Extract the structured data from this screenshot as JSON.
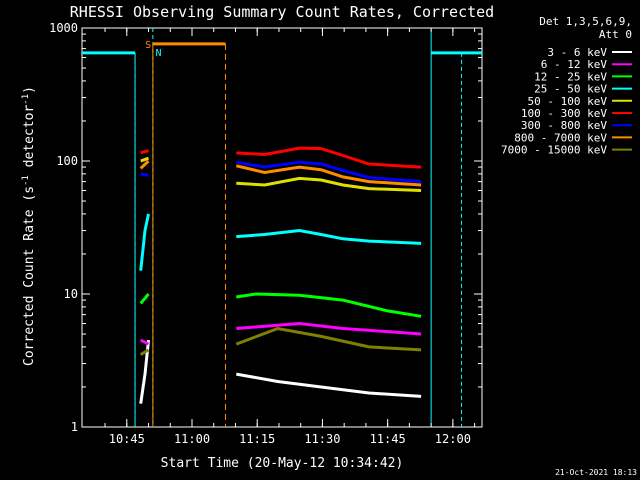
{
  "chart_data": {
    "type": "line",
    "title": "RHESSI Observing Summary Count Rates, Corrected",
    "xlabel": "Start Time (20-May-12 10:34:42)",
    "ylabel_main": "Corrected Count Rate (s",
    "ylabel_sup1": "-1",
    "ylabel_mid": " detector",
    "ylabel_sup2": "-1",
    "ylabel_end": ")",
    "yscale": "log",
    "ylim": [
      1,
      1000
    ],
    "xlim_minutes": [
      0,
      92
    ],
    "x_ticks": [
      "10:45",
      "11:00",
      "11:15",
      "11:30",
      "11:45",
      "12:00"
    ],
    "y_ticks": [
      "1",
      "10",
      "100",
      "1000"
    ],
    "legend_header": [
      "Det 1,3,5,6,9,",
      "Att 0"
    ],
    "legend": [
      {
        "label": "3 - 6 keV",
        "color": "#ffffff"
      },
      {
        "label": "6 - 12 keV",
        "color": "#ff00ff"
      },
      {
        "label": "12 - 25 keV",
        "color": "#00ff00"
      },
      {
        "label": "25 - 50 keV",
        "color": "#00ffff"
      },
      {
        "label": "50 - 100 keV",
        "color": "#e0e000"
      },
      {
        "label": "100 - 300 keV",
        "color": "#ff0000"
      },
      {
        "label": "300 - 800 keV",
        "color": "#0000ff"
      },
      {
        "label": "800 - 7000 keV",
        "color": "#ff8c00"
      },
      {
        "label": "7000 - 15000 keV",
        "color": "#808000"
      }
    ],
    "flags": {
      "saa_label": "S",
      "night_label": "N",
      "night_level": 650,
      "saa_level": 760
    },
    "series": [
      {
        "name": "3 - 6 keV",
        "color": "#ffffff",
        "segments": [
          [
            [
              13.5,
              1.5
            ],
            [
              14.5,
              2.5
            ],
            [
              15.3,
              4.5
            ]
          ],
          [
            [
              35.5,
              2.5
            ],
            [
              45,
              2.2
            ],
            [
              55,
              2.0
            ],
            [
              66,
              1.8
            ],
            [
              78,
              1.7
            ]
          ]
        ]
      },
      {
        "name": "6 - 12 keV",
        "color": "#ff00ff",
        "segments": [
          [
            [
              13.5,
              4.5
            ],
            [
              15.3,
              4.2
            ]
          ],
          [
            [
              35.5,
              5.5
            ],
            [
              50,
              6.0
            ],
            [
              60,
              5.5
            ],
            [
              78,
              5.0
            ]
          ]
        ]
      },
      {
        "name": "12 - 25 keV",
        "color": "#00ff00",
        "segments": [
          [
            [
              13.5,
              8.5
            ],
            [
              15.3,
              10.0
            ]
          ],
          [
            [
              35.5,
              9.5
            ],
            [
              40,
              10.0
            ],
            [
              50,
              9.8
            ],
            [
              60,
              9.0
            ],
            [
              70,
              7.5
            ],
            [
              78,
              6.8
            ]
          ]
        ]
      },
      {
        "name": "25 - 50 keV",
        "color": "#00ffff",
        "segments": [
          [
            [
              13.5,
              15
            ],
            [
              14.5,
              30
            ],
            [
              15.3,
              40
            ]
          ],
          [
            [
              35.5,
              27
            ],
            [
              42,
              28
            ],
            [
              50,
              30
            ],
            [
              55,
              28
            ],
            [
              60,
              26
            ],
            [
              66,
              25
            ],
            [
              78,
              24
            ]
          ]
        ]
      },
      {
        "name": "50 - 100 keV",
        "color": "#e0e000",
        "segments": [
          [
            [
              13.5,
              100
            ],
            [
              15.3,
              105
            ]
          ],
          [
            [
              35.5,
              68
            ],
            [
              42,
              66
            ],
            [
              50,
              74
            ],
            [
              55,
              72
            ],
            [
              60,
              66
            ],
            [
              66,
              62
            ],
            [
              78,
              60
            ]
          ]
        ]
      },
      {
        "name": "100 - 300 keV",
        "color": "#ff0000",
        "segments": [
          [
            [
              13.5,
              115
            ],
            [
              15.3,
              120
            ]
          ],
          [
            [
              35.5,
              115
            ],
            [
              42,
              112
            ],
            [
              50,
              125
            ],
            [
              55,
              124
            ],
            [
              60,
              110
            ],
            [
              66,
              95
            ],
            [
              78,
              90
            ]
          ]
        ]
      },
      {
        "name": "300 - 800 keV",
        "color": "#0000ff",
        "segments": [
          [
            [
              13.5,
              80
            ],
            [
              15.3,
              78
            ]
          ],
          [
            [
              35.5,
              98
            ],
            [
              42,
              90
            ],
            [
              50,
              98
            ],
            [
              55,
              95
            ],
            [
              60,
              85
            ],
            [
              66,
              75
            ],
            [
              78,
              70
            ]
          ]
        ]
      },
      {
        "name": "800 - 7000 keV",
        "color": "#ff8c00",
        "segments": [
          [
            [
              13.5,
              88
            ],
            [
              15.3,
              100
            ]
          ],
          [
            [
              35.5,
              92
            ],
            [
              42,
              82
            ],
            [
              50,
              90
            ],
            [
              55,
              86
            ],
            [
              60,
              76
            ],
            [
              66,
              70
            ],
            [
              78,
              66
            ]
          ]
        ]
      },
      {
        "name": "7000 - 15000 keV",
        "color": "#808000",
        "segments": [
          [
            [
              13.5,
              3.5
            ],
            [
              15.3,
              3.8
            ]
          ],
          [
            [
              35.5,
              4.2
            ],
            [
              45,
              5.5
            ],
            [
              55,
              4.8
            ],
            [
              66,
              4.0
            ],
            [
              78,
              3.8
            ]
          ]
        ]
      }
    ]
  },
  "footer_date": "21-Oct-2021 18:13"
}
